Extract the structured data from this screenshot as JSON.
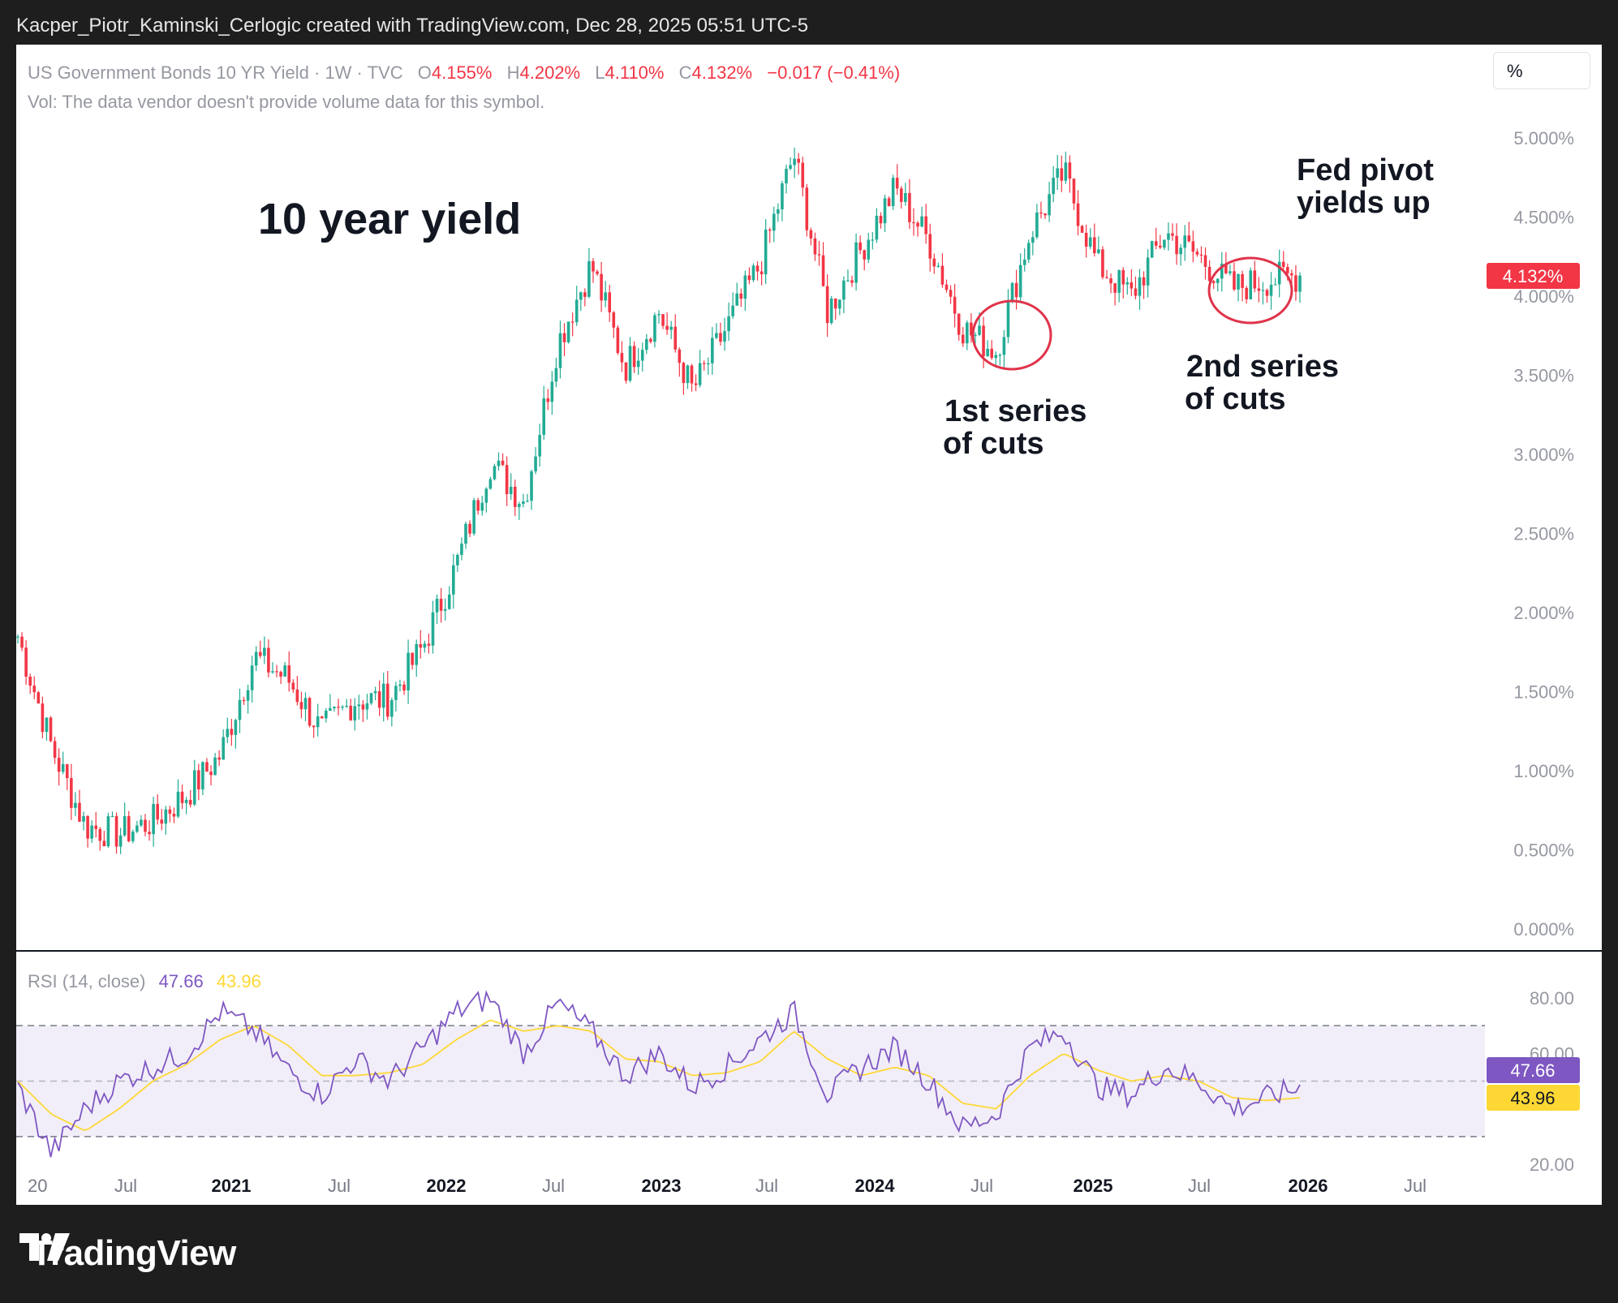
{
  "header": {
    "attribution": "Kacper_Piotr_Kaminski_Cerlogic created with TradingView.com, Dec 28, 2025 05:51 UTC-5"
  },
  "legend": {
    "symbol": "US Government Bonds 10 YR Yield · 1W · TVC",
    "o_label": "O",
    "o_value": "4.155%",
    "h_label": "H",
    "h_value": "4.202%",
    "l_label": "L",
    "l_value": "4.110%",
    "c_label": "C",
    "c_value": "4.132%",
    "change": "−0.017 (−0.41%)",
    "vol_note": "Vol: The data vendor doesn't provide volume data for this symbol."
  },
  "unit_button": "%",
  "annotations": {
    "title": "10 year yield",
    "cuts1_line1": "1st series",
    "cuts1_line2": "of cuts",
    "cuts2_line1": "2nd series",
    "cuts2_line2": "of cuts",
    "pivot_line1": "Fed pivot",
    "pivot_line2": "yields up"
  },
  "price_badge": "4.132%",
  "rsi": {
    "label": "RSI (14, close)",
    "rsi_value": "47.66",
    "ma_value": "43.96"
  },
  "colors": {
    "up": "#22ab94",
    "down": "#f23645",
    "rsi": "#7e57c2",
    "rsi_ma": "#fdd835",
    "badge_red": "#f23645",
    "annotation_circle": "#e0334a"
  },
  "footer": {
    "brand": "TradingView"
  },
  "chart_data": [
    {
      "type": "candlestick",
      "title": "US Government Bonds 10 YR Yield · 1W · TVC",
      "unit": "%",
      "ylim": [
        0,
        5.0
      ],
      "y_ticks": [
        "0.000%",
        "0.500%",
        "1.000%",
        "1.500%",
        "2.000%",
        "2.500%",
        "3.000%",
        "3.500%",
        "4.000%",
        "4.500%",
        "5.000%"
      ],
      "x_ticks": [
        "20",
        "Jul",
        "2021",
        "Jul",
        "2022",
        "Jul",
        "2023",
        "Jul",
        "2024",
        "Jul",
        "2025",
        "Jul",
        "2026",
        "Jul"
      ],
      "x": [
        "2020-01",
        "2020-03",
        "2020-05",
        "2020-07",
        "2020-09",
        "2020-11",
        "2021-01",
        "2021-03",
        "2021-05",
        "2021-07",
        "2021-09",
        "2021-11",
        "2022-01",
        "2022-03",
        "2022-05",
        "2022-07",
        "2022-09",
        "2022-10",
        "2022-12",
        "2023-02",
        "2023-04",
        "2023-06",
        "2023-08",
        "2023-10",
        "2023-12",
        "2024-02",
        "2024-04",
        "2024-06",
        "2024-08",
        "2024-09",
        "2024-11",
        "2025-01",
        "2025-03",
        "2025-04",
        "2025-06",
        "2025-08",
        "2025-09",
        "2025-11",
        "2025-12"
      ],
      "close": [
        1.85,
        1.15,
        0.65,
        0.6,
        0.68,
        0.85,
        1.1,
        1.72,
        1.58,
        1.25,
        1.45,
        1.45,
        1.78,
        2.3,
        2.95,
        2.7,
        3.7,
        4.2,
        3.55,
        3.9,
        3.4,
        3.8,
        4.2,
        4.9,
        3.9,
        4.3,
        4.68,
        4.35,
        3.8,
        3.65,
        4.4,
        4.78,
        4.2,
        4.0,
        4.4,
        4.25,
        4.05,
        4.1,
        4.13
      ],
      "series": [
        {
          "name": "10 YR Yield",
          "values": [
            1.85,
            1.15,
            0.65,
            0.6,
            0.68,
            0.85,
            1.1,
            1.72,
            1.58,
            1.25,
            1.45,
            1.45,
            1.78,
            2.3,
            2.95,
            2.7,
            3.7,
            4.2,
            3.55,
            3.9,
            3.4,
            3.8,
            4.2,
            4.9,
            3.9,
            4.3,
            4.68,
            4.35,
            3.8,
            3.65,
            4.4,
            4.78,
            4.2,
            4.0,
            4.4,
            4.25,
            4.05,
            4.1,
            4.13
          ]
        }
      ],
      "annotations": [
        "10 year yield",
        "1st series of cuts",
        "2nd series of cuts",
        "Fed pivot yields up"
      ]
    },
    {
      "type": "line",
      "title": "RSI (14, close)",
      "ylim": [
        20,
        80
      ],
      "y_ticks": [
        "20.00",
        "60.00",
        "80.00"
      ],
      "bands": [
        30,
        50,
        70
      ],
      "series": [
        {
          "name": "RSI",
          "values": [
            48,
            24,
            40,
            50,
            55,
            60,
            75,
            68,
            54,
            45,
            58,
            50,
            62,
            75,
            80,
            60,
            78,
            68,
            52,
            60,
            48,
            55,
            65,
            75,
            45,
            55,
            62,
            50,
            33,
            38,
            62,
            68,
            48,
            45,
            55,
            50,
            40,
            44,
            47.66
          ]
        },
        {
          "name": "RSI MA",
          "values": [
            50,
            38,
            32,
            40,
            50,
            56,
            65,
            70,
            63,
            52,
            52,
            53,
            56,
            65,
            72,
            68,
            70,
            68,
            58,
            57,
            52,
            53,
            57,
            68,
            58,
            52,
            55,
            52,
            42,
            40,
            52,
            60,
            54,
            50,
            52,
            50,
            44,
            43,
            43.96
          ]
        }
      ]
    }
  ]
}
